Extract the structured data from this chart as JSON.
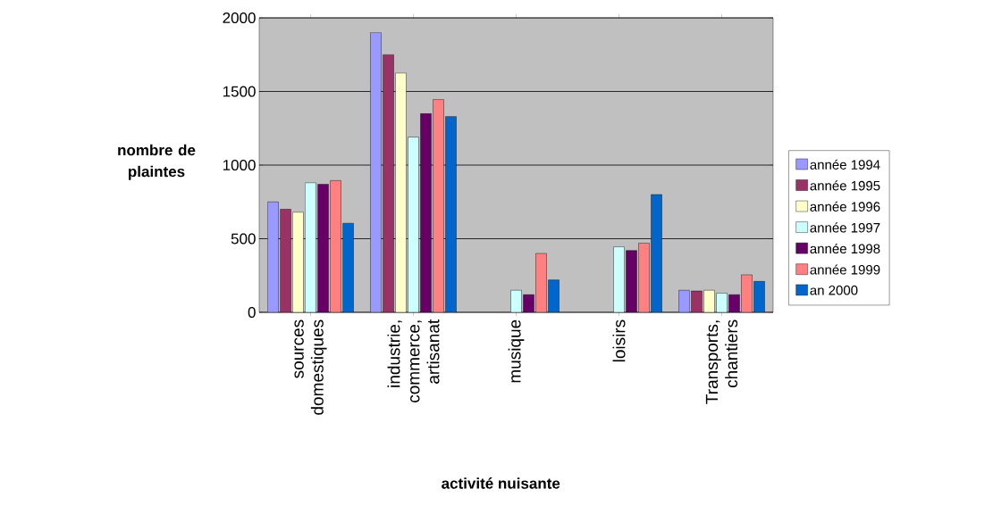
{
  "chart_data": {
    "type": "bar",
    "xlabel": "activité nuisante",
    "ylabel": "nombre de plaintes",
    "categories": [
      "sources domestiques",
      "industrie, commerce, artisanat",
      "musique",
      "loisirs",
      "Transports, chantiers"
    ],
    "series": [
      {
        "name": "année 1994",
        "color": "#9999ff",
        "values": [
          750,
          1900,
          null,
          null,
          150
        ]
      },
      {
        "name": "année 1995",
        "color": "#993366",
        "values": [
          700,
          1750,
          null,
          null,
          145
        ]
      },
      {
        "name": "année 1996",
        "color": "#ffffcc",
        "values": [
          680,
          1625,
          null,
          null,
          150
        ]
      },
      {
        "name": "année 1997",
        "color": "#ccffff",
        "values": [
          880,
          1190,
          150,
          445,
          130
        ]
      },
      {
        "name": "année 1998",
        "color": "#660066",
        "values": [
          870,
          1350,
          120,
          420,
          120
        ]
      },
      {
        "name": "année 1999",
        "color": "#ff8080",
        "values": [
          895,
          1445,
          400,
          470,
          255
        ]
      },
      {
        "name": "an 2000",
        "color": "#0066cc",
        "values": [
          605,
          1330,
          220,
          800,
          210
        ]
      }
    ],
    "ylim": [
      0,
      2000
    ],
    "yticks": [
      0,
      500,
      1000,
      1500,
      2000
    ],
    "grid": "y",
    "legend": "right"
  }
}
